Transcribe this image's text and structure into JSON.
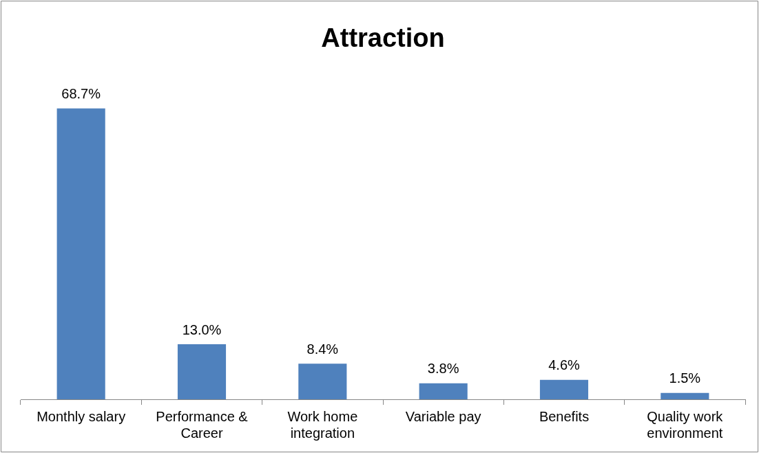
{
  "chart_data": {
    "type": "bar",
    "title": "Attraction",
    "categories": [
      "Monthly salary",
      "Performance &\nCareer",
      "Work home\nintegration",
      "Variable pay",
      "Benefits",
      "Quality work\nenvironment"
    ],
    "values": [
      68.7,
      13.0,
      8.4,
      3.8,
      4.6,
      1.5
    ],
    "value_labels": [
      "68.7%",
      "13.0%",
      "8.4%",
      "3.8%",
      "4.6%",
      "1.5%"
    ],
    "color": "#4f81bd",
    "grid": false,
    "legend": false
  }
}
